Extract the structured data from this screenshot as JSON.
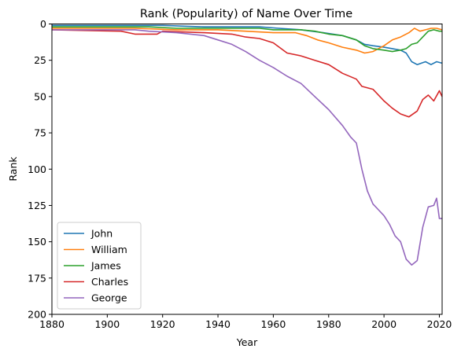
{
  "chart_data": {
    "type": "line",
    "title": "Rank (Popularity) of Name Over Time",
    "xlabel": "Year",
    "ylabel": "Rank",
    "xlim": [
      1880,
      2021
    ],
    "ylim": [
      200,
      0
    ],
    "y_inverted": true,
    "xticks": [
      1880,
      1900,
      1920,
      1940,
      1960,
      1980,
      2000,
      2020
    ],
    "yticks": [
      0,
      25,
      50,
      75,
      100,
      125,
      150,
      175,
      200
    ],
    "grid": false,
    "legend_position": "lower-left",
    "series": [
      {
        "name": "John",
        "color": "#1f77b4",
        "points": [
          [
            1880,
            1
          ],
          [
            1920,
            1
          ],
          [
            1935,
            2
          ],
          [
            1955,
            2
          ],
          [
            1962,
            3
          ],
          [
            1970,
            4
          ],
          [
            1978,
            6
          ],
          [
            1985,
            8
          ],
          [
            1990,
            11
          ],
          [
            1993,
            14
          ],
          [
            1996,
            15
          ],
          [
            2000,
            16
          ],
          [
            2003,
            17
          ],
          [
            2006,
            18
          ],
          [
            2008,
            20
          ],
          [
            2010,
            26
          ],
          [
            2012,
            28
          ],
          [
            2015,
            26
          ],
          [
            2017,
            28
          ],
          [
            2019,
            26
          ],
          [
            2021,
            27
          ]
        ]
      },
      {
        "name": "William",
        "color": "#ff7f0e",
        "points": [
          [
            1880,
            3
          ],
          [
            1910,
            3
          ],
          [
            1925,
            4
          ],
          [
            1940,
            4
          ],
          [
            1950,
            5
          ],
          [
            1960,
            6
          ],
          [
            1968,
            6
          ],
          [
            1972,
            8
          ],
          [
            1976,
            11
          ],
          [
            1980,
            13
          ],
          [
            1985,
            16
          ],
          [
            1990,
            18
          ],
          [
            1993,
            20
          ],
          [
            1996,
            19
          ],
          [
            2000,
            15
          ],
          [
            2003,
            11
          ],
          [
            2006,
            9
          ],
          [
            2009,
            6
          ],
          [
            2011,
            3
          ],
          [
            2013,
            5
          ],
          [
            2015,
            4
          ],
          [
            2017,
            3
          ],
          [
            2019,
            3
          ],
          [
            2021,
            4
          ]
        ]
      },
      {
        "name": "James",
        "color": "#2ca02c",
        "points": [
          [
            1880,
            2
          ],
          [
            1915,
            2
          ],
          [
            1925,
            3
          ],
          [
            1945,
            3
          ],
          [
            1955,
            3
          ],
          [
            1960,
            4
          ],
          [
            1970,
            4
          ],
          [
            1975,
            5
          ],
          [
            1980,
            7
          ],
          [
            1985,
            8
          ],
          [
            1990,
            11
          ],
          [
            1993,
            15
          ],
          [
            1996,
            17
          ],
          [
            2000,
            18
          ],
          [
            2003,
            19
          ],
          [
            2006,
            18
          ],
          [
            2008,
            17
          ],
          [
            2010,
            14
          ],
          [
            2012,
            13
          ],
          [
            2014,
            9
          ],
          [
            2016,
            5
          ],
          [
            2018,
            4
          ],
          [
            2020,
            5
          ],
          [
            2021,
            5
          ]
        ]
      },
      {
        "name": "Charles",
        "color": "#d62728",
        "points": [
          [
            1880,
            4
          ],
          [
            1905,
            5
          ],
          [
            1910,
            7
          ],
          [
            1918,
            7
          ],
          [
            1920,
            5
          ],
          [
            1935,
            6
          ],
          [
            1945,
            7
          ],
          [
            1950,
            9
          ],
          [
            1955,
            10
          ],
          [
            1960,
            13
          ],
          [
            1965,
            20
          ],
          [
            1970,
            22
          ],
          [
            1975,
            25
          ],
          [
            1980,
            28
          ],
          [
            1985,
            34
          ],
          [
            1990,
            38
          ],
          [
            1992,
            43
          ],
          [
            1996,
            45
          ],
          [
            2000,
            53
          ],
          [
            2003,
            58
          ],
          [
            2006,
            62
          ],
          [
            2009,
            64
          ],
          [
            2012,
            60
          ],
          [
            2014,
            52
          ],
          [
            2016,
            49
          ],
          [
            2018,
            53
          ],
          [
            2020,
            46
          ],
          [
            2021,
            50
          ]
        ]
      },
      {
        "name": "George",
        "color": "#9467bd",
        "points": [
          [
            1880,
            4
          ],
          [
            1910,
            4
          ],
          [
            1915,
            5
          ],
          [
            1925,
            6
          ],
          [
            1935,
            8
          ],
          [
            1940,
            11
          ],
          [
            1945,
            14
          ],
          [
            1950,
            19
          ],
          [
            1955,
            25
          ],
          [
            1960,
            30
          ],
          [
            1965,
            36
          ],
          [
            1970,
            41
          ],
          [
            1975,
            50
          ],
          [
            1980,
            59
          ],
          [
            1985,
            70
          ],
          [
            1988,
            78
          ],
          [
            1990,
            82
          ],
          [
            1992,
            100
          ],
          [
            1994,
            115
          ],
          [
            1996,
            124
          ],
          [
            1998,
            128
          ],
          [
            2000,
            132
          ],
          [
            2002,
            138
          ],
          [
            2004,
            146
          ],
          [
            2006,
            150
          ],
          [
            2008,
            162
          ],
          [
            2010,
            166
          ],
          [
            2012,
            163
          ],
          [
            2014,
            140
          ],
          [
            2016,
            126
          ],
          [
            2018,
            125
          ],
          [
            2019,
            120
          ],
          [
            2020,
            134
          ],
          [
            2021,
            134
          ]
        ]
      }
    ]
  }
}
